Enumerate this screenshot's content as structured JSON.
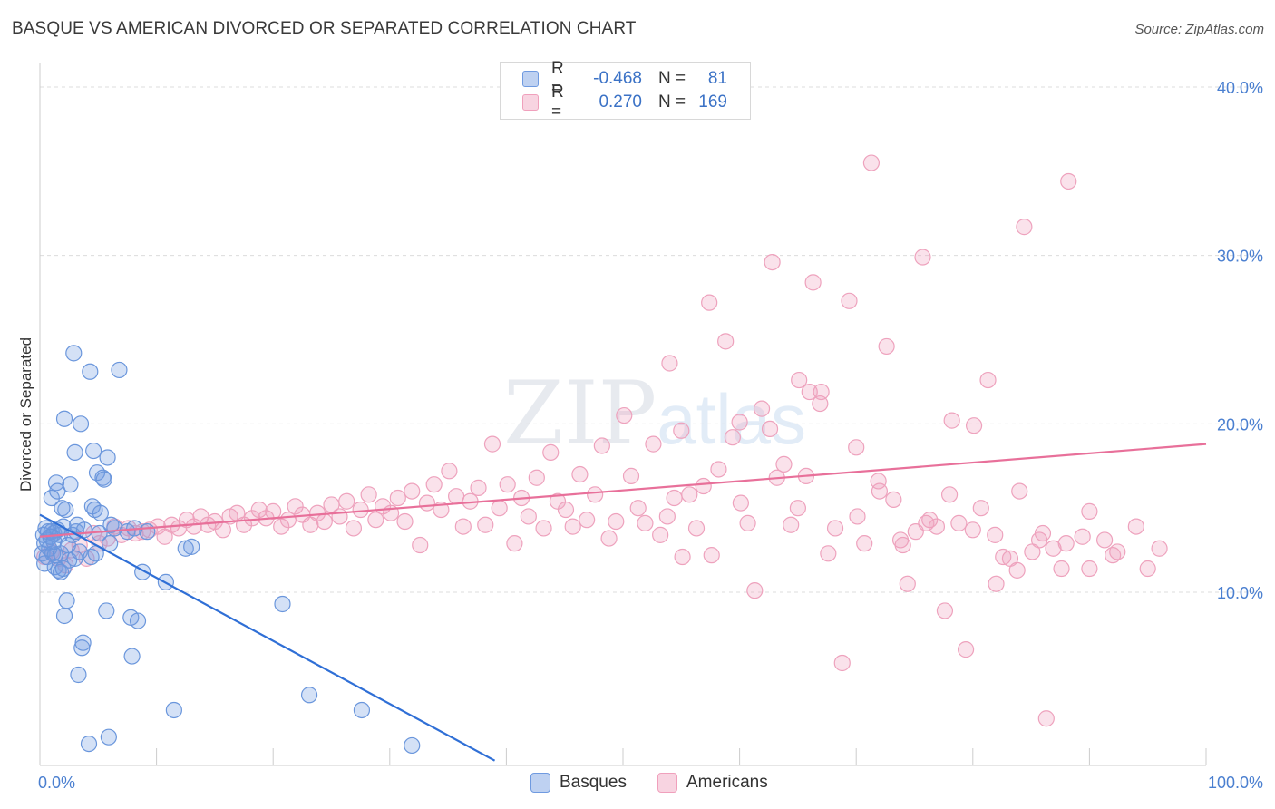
{
  "header": {
    "title": "BASQUE VS AMERICAN DIVORCED OR SEPARATED CORRELATION CHART",
    "source": "Source: ZipAtlas.com"
  },
  "watermark": {
    "zip": "ZIP",
    "atlas": "atlas"
  },
  "legend": {
    "rows": [
      {
        "r_label": "R =",
        "r_value": "-0.468",
        "n_label": "N =",
        "n_value": "81"
      },
      {
        "r_label": "R =",
        "r_value": "0.270",
        "n_label": "N =",
        "n_value": "169"
      }
    ]
  },
  "bottom_legend": {
    "basques": "Basques",
    "americans": "Americans"
  },
  "chart_data": {
    "type": "scatter",
    "ylabel": "Divorced or Separated",
    "xlim": [
      0,
      100
    ],
    "ylim": [
      0,
      41
    ],
    "x_tick_labels": [
      "0.0%",
      "100.0%"
    ],
    "y_ticks": [
      10,
      20,
      30,
      40
    ],
    "y_tick_labels": [
      "10.0%",
      "20.0%",
      "30.0%",
      "40.0%"
    ],
    "grid": true,
    "colors": {
      "basques": "#6f9ae0",
      "americans": "#f0a0bc",
      "basques_line": "#2f6fd6",
      "americans_line": "#e8709a"
    },
    "series": [
      {
        "name": "Basques",
        "trend": {
          "x": [
            0,
            39
          ],
          "y": [
            14.6,
            0
          ]
        },
        "points": [
          [
            0.2,
            12.3
          ],
          [
            0.3,
            13.4
          ],
          [
            0.4,
            12.9
          ],
          [
            0.5,
            13.8
          ],
          [
            0.6,
            13.1
          ],
          [
            0.6,
            12.1
          ],
          [
            0.7,
            13.6
          ],
          [
            0.8,
            12.6
          ],
          [
            0.9,
            13.3
          ],
          [
            1.0,
            15.6
          ],
          [
            1.0,
            13.6
          ],
          [
            1.1,
            12.3
          ],
          [
            1.2,
            13.5
          ],
          [
            1.3,
            11.5
          ],
          [
            1.3,
            12.2
          ],
          [
            1.4,
            16.5
          ],
          [
            1.5,
            16.0
          ],
          [
            1.5,
            13.7
          ],
          [
            1.6,
            11.3
          ],
          [
            1.7,
            13.4
          ],
          [
            1.8,
            12.3
          ],
          [
            1.8,
            11.2
          ],
          [
            1.9,
            15.0
          ],
          [
            2.0,
            13.9
          ],
          [
            2.0,
            11.4
          ],
          [
            2.1,
            20.3
          ],
          [
            2.1,
            8.6
          ],
          [
            2.2,
            14.9
          ],
          [
            2.3,
            9.5
          ],
          [
            2.5,
            11.9
          ],
          [
            2.6,
            16.4
          ],
          [
            2.8,
            13.4
          ],
          [
            2.9,
            24.2
          ],
          [
            3.0,
            18.3
          ],
          [
            3.0,
            12.0
          ],
          [
            3.1,
            13.6
          ],
          [
            3.2,
            14.0
          ],
          [
            3.3,
            5.1
          ],
          [
            3.5,
            20.0
          ],
          [
            3.6,
            6.7
          ],
          [
            3.7,
            7.0
          ],
          [
            3.8,
            13.7
          ],
          [
            4.2,
            1.0
          ],
          [
            4.3,
            23.1
          ],
          [
            4.4,
            12.1
          ],
          [
            4.5,
            15.1
          ],
          [
            4.6,
            18.4
          ],
          [
            4.7,
            14.9
          ],
          [
            4.8,
            12.3
          ],
          [
            4.9,
            17.1
          ],
          [
            5.1,
            13.5
          ],
          [
            5.2,
            14.7
          ],
          [
            5.4,
            16.8
          ],
          [
            5.5,
            16.7
          ],
          [
            5.7,
            8.9
          ],
          [
            5.8,
            18.0
          ],
          [
            5.9,
            1.4
          ],
          [
            6.1,
            14.0
          ],
          [
            6.4,
            13.8
          ],
          [
            6.8,
            23.2
          ],
          [
            7.5,
            13.6
          ],
          [
            7.8,
            8.5
          ],
          [
            7.9,
            6.2
          ],
          [
            8.1,
            13.8
          ],
          [
            8.4,
            8.3
          ],
          [
            8.8,
            11.2
          ],
          [
            9.2,
            13.6
          ],
          [
            10.8,
            10.6
          ],
          [
            11.5,
            3.0
          ],
          [
            12.5,
            12.6
          ],
          [
            13.0,
            12.7
          ],
          [
            20.8,
            9.3
          ],
          [
            23.1,
            3.9
          ],
          [
            27.6,
            3.0
          ],
          [
            31.9,
            0.9
          ],
          [
            0.4,
            11.7
          ],
          [
            0.9,
            13.3
          ],
          [
            1.2,
            13.0
          ],
          [
            2.4,
            12.8
          ],
          [
            3.4,
            12.4
          ],
          [
            6.0,
            12.9
          ]
        ]
      },
      {
        "name": "Americans",
        "trend": {
          "x": [
            0,
            100
          ],
          "y": [
            13.3,
            18.8
          ]
        },
        "points": [
          [
            0.4,
            12.1
          ],
          [
            1.0,
            12.4
          ],
          [
            1.6,
            12.0
          ],
          [
            2.2,
            11.6
          ],
          [
            2.7,
            12.5
          ],
          [
            3.4,
            12.8
          ],
          [
            4.0,
            12.0
          ],
          [
            4.6,
            13.5
          ],
          [
            5.1,
            12.9
          ],
          [
            5.8,
            13.2
          ],
          [
            6.4,
            13.9
          ],
          [
            7.0,
            13.4
          ],
          [
            7.6,
            13.8
          ],
          [
            8.2,
            13.5
          ],
          [
            8.8,
            13.6
          ],
          [
            9.4,
            13.7
          ],
          [
            10.1,
            13.9
          ],
          [
            10.7,
            13.3
          ],
          [
            11.3,
            14.0
          ],
          [
            11.9,
            13.8
          ],
          [
            12.6,
            14.3
          ],
          [
            13.2,
            13.9
          ],
          [
            13.8,
            14.5
          ],
          [
            14.4,
            14.0
          ],
          [
            15.0,
            14.2
          ],
          [
            15.7,
            13.7
          ],
          [
            16.3,
            14.5
          ],
          [
            16.9,
            14.7
          ],
          [
            17.5,
            14.0
          ],
          [
            18.2,
            14.4
          ],
          [
            18.8,
            14.9
          ],
          [
            19.4,
            14.4
          ],
          [
            20.0,
            14.8
          ],
          [
            20.7,
            13.9
          ],
          [
            21.3,
            14.3
          ],
          [
            21.9,
            15.1
          ],
          [
            22.5,
            14.6
          ],
          [
            23.2,
            14.0
          ],
          [
            23.8,
            14.7
          ],
          [
            24.4,
            14.2
          ],
          [
            25.0,
            15.2
          ],
          [
            25.7,
            14.5
          ],
          [
            26.3,
            15.4
          ],
          [
            26.9,
            13.8
          ],
          [
            27.5,
            14.9
          ],
          [
            28.2,
            15.8
          ],
          [
            28.8,
            14.3
          ],
          [
            29.4,
            15.1
          ],
          [
            30.1,
            14.7
          ],
          [
            30.7,
            15.6
          ],
          [
            31.3,
            14.2
          ],
          [
            31.9,
            16.0
          ],
          [
            32.6,
            12.8
          ],
          [
            33.2,
            15.3
          ],
          [
            33.8,
            16.4
          ],
          [
            34.4,
            14.9
          ],
          [
            35.1,
            17.2
          ],
          [
            35.7,
            15.7
          ],
          [
            36.3,
            13.9
          ],
          [
            36.9,
            15.4
          ],
          [
            37.6,
            16.2
          ],
          [
            38.2,
            14.0
          ],
          [
            38.8,
            18.8
          ],
          [
            39.4,
            15.0
          ],
          [
            40.1,
            16.4
          ],
          [
            40.7,
            12.9
          ],
          [
            41.3,
            15.6
          ],
          [
            41.9,
            14.5
          ],
          [
            42.6,
            16.8
          ],
          [
            43.2,
            13.8
          ],
          [
            43.8,
            18.3
          ],
          [
            44.4,
            15.4
          ],
          [
            45.1,
            14.9
          ],
          [
            45.7,
            13.9
          ],
          [
            46.3,
            17.0
          ],
          [
            46.9,
            14.3
          ],
          [
            47.6,
            15.8
          ],
          [
            48.2,
            18.7
          ],
          [
            48.8,
            13.2
          ],
          [
            49.4,
            14.2
          ],
          [
            50.1,
            20.5
          ],
          [
            50.7,
            16.9
          ],
          [
            51.3,
            15.0
          ],
          [
            51.9,
            14.1
          ],
          [
            52.6,
            18.8
          ],
          [
            53.2,
            13.4
          ],
          [
            53.8,
            14.5
          ],
          [
            54.4,
            15.6
          ],
          [
            55.1,
            12.1
          ],
          [
            55.7,
            15.8
          ],
          [
            56.3,
            13.8
          ],
          [
            56.9,
            16.3
          ],
          [
            57.6,
            12.2
          ],
          [
            58.2,
            17.3
          ],
          [
            58.8,
            24.9
          ],
          [
            59.4,
            19.2
          ],
          [
            60.1,
            15.3
          ],
          [
            60.7,
            14.1
          ],
          [
            61.3,
            10.1
          ],
          [
            61.9,
            20.9
          ],
          [
            62.6,
            19.7
          ],
          [
            63.2,
            16.8
          ],
          [
            63.8,
            17.6
          ],
          [
            64.4,
            14.0
          ],
          [
            65.1,
            22.6
          ],
          [
            65.7,
            16.9
          ],
          [
            66.3,
            28.4
          ],
          [
            66.9,
            21.2
          ],
          [
            67.6,
            12.3
          ],
          [
            68.2,
            13.8
          ],
          [
            68.8,
            5.8
          ],
          [
            69.4,
            27.3
          ],
          [
            70.1,
            14.5
          ],
          [
            70.7,
            12.9
          ],
          [
            71.3,
            35.5
          ],
          [
            71.9,
            16.6
          ],
          [
            72.6,
            24.6
          ],
          [
            73.2,
            15.5
          ],
          [
            73.8,
            13.1
          ],
          [
            74.4,
            10.5
          ],
          [
            75.1,
            13.6
          ],
          [
            75.7,
            29.9
          ],
          [
            76.3,
            14.3
          ],
          [
            76.9,
            13.9
          ],
          [
            77.6,
            8.9
          ],
          [
            78.2,
            20.2
          ],
          [
            78.8,
            14.1
          ],
          [
            79.4,
            6.6
          ],
          [
            80.1,
            19.9
          ],
          [
            80.7,
            15.0
          ],
          [
            81.3,
            22.6
          ],
          [
            81.9,
            13.4
          ],
          [
            82.6,
            12.1
          ],
          [
            83.2,
            12.0
          ],
          [
            83.8,
            11.3
          ],
          [
            84.4,
            31.7
          ],
          [
            85.1,
            12.4
          ],
          [
            85.7,
            13.1
          ],
          [
            86.3,
            2.5
          ],
          [
            86.9,
            12.6
          ],
          [
            87.6,
            11.4
          ],
          [
            88.2,
            34.4
          ],
          [
            89.4,
            13.3
          ],
          [
            90.0,
            11.4
          ],
          [
            91.3,
            13.1
          ],
          [
            92.4,
            12.4
          ],
          [
            95.0,
            11.4
          ],
          [
            54.0,
            23.6
          ],
          [
            57.4,
            27.2
          ],
          [
            62.8,
            29.6
          ],
          [
            66.0,
            21.9
          ],
          [
            67.0,
            21.9
          ],
          [
            70.0,
            18.6
          ],
          [
            55.0,
            19.6
          ],
          [
            60.0,
            20.1
          ],
          [
            65.0,
            15.0
          ],
          [
            72.0,
            16.0
          ],
          [
            74.0,
            12.8
          ],
          [
            76.0,
            14.1
          ],
          [
            78.0,
            15.8
          ],
          [
            80.0,
            13.7
          ],
          [
            82.0,
            10.5
          ],
          [
            84.0,
            16.0
          ],
          [
            86.0,
            13.5
          ],
          [
            88.0,
            12.9
          ],
          [
            90.0,
            14.8
          ],
          [
            92.0,
            12.2
          ],
          [
            94.0,
            13.9
          ],
          [
            96.0,
            12.6
          ]
        ]
      }
    ]
  }
}
